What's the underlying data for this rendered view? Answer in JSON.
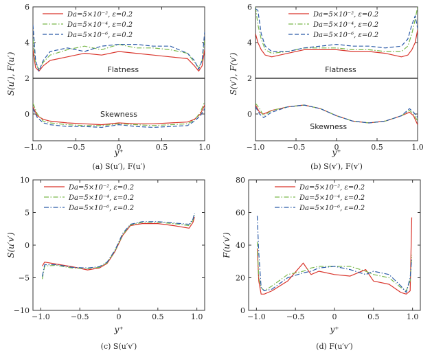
{
  "colors": {
    "red": "#d9342b",
    "green": "#79b84a",
    "blue": "#2b5ba8",
    "axis": "#333333"
  },
  "legend_labels": [
    "Da=5×10⁻², ε=0.2",
    "Da=5×10⁻⁴, ε=0.2",
    "Da=5×10⁻⁶, ε=0.2"
  ],
  "chart_data": [
    {
      "type": "line",
      "caption": "(a) S(u′), F(u′)",
      "xlabel": "y⁺",
      "ylabel": "S(u′), F(u′)",
      "xlim": [
        -1.0,
        1.0
      ],
      "ylim": [
        -1.5,
        6
      ],
      "xticks": [
        -1.0,
        -0.5,
        0,
        0.5,
        1.0
      ],
      "xtick_labels": [
        "−1.0",
        "−0.5",
        "0",
        "0.5",
        "1.0"
      ],
      "yticks": [
        0,
        2,
        4,
        6
      ],
      "ytick_labels": [
        "0",
        "2",
        "4",
        "6"
      ],
      "hline": 2,
      "annotations": [
        {
          "text": "Flatness",
          "x": 0.05,
          "y": 2.35
        },
        {
          "text": "Skewness",
          "x": 0.0,
          "y": -0.15
        }
      ],
      "legend_position": "top",
      "series": [
        {
          "name": "Da=5×10⁻², ε=0.2",
          "color": "red",
          "dash": "solid",
          "x": [
            -1.0,
            -0.97,
            -0.93,
            -0.88,
            -0.8,
            -0.6,
            -0.4,
            -0.2,
            0.0,
            0.2,
            0.4,
            0.6,
            0.8,
            0.88,
            0.93,
            0.97,
            1.0
          ],
          "y": [
            3.6,
            2.6,
            2.4,
            2.7,
            3.0,
            3.2,
            3.4,
            3.3,
            3.5,
            3.4,
            3.3,
            3.2,
            3.1,
            2.7,
            2.4,
            2.7,
            3.6
          ]
        },
        {
          "name": "Da=5×10⁻⁴, ε=0.2",
          "color": "green",
          "dash": "dashdot",
          "x": [
            -1.0,
            -0.97,
            -0.93,
            -0.88,
            -0.8,
            -0.6,
            -0.4,
            -0.2,
            0.0,
            0.2,
            0.4,
            0.6,
            0.8,
            0.88,
            0.93,
            0.97,
            1.0
          ],
          "y": [
            4.2,
            2.8,
            2.5,
            2.9,
            3.3,
            3.6,
            3.8,
            3.6,
            3.9,
            3.7,
            3.7,
            3.6,
            3.4,
            2.9,
            2.6,
            3.0,
            4.2
          ]
        },
        {
          "name": "Da=5×10⁻⁶, ε=0.2",
          "color": "blue",
          "dash": "dashed",
          "x": [
            -1.0,
            -0.97,
            -0.93,
            -0.88,
            -0.8,
            -0.6,
            -0.4,
            -0.2,
            0.0,
            0.2,
            0.4,
            0.6,
            0.8,
            0.88,
            0.93,
            0.97,
            1.0
          ],
          "y": [
            5.0,
            3.0,
            2.4,
            3.0,
            3.5,
            3.7,
            3.5,
            3.8,
            3.9,
            3.9,
            3.8,
            3.8,
            3.4,
            3.0,
            2.5,
            3.0,
            4.6
          ]
        },
        {
          "color": "red",
          "dash": "solid",
          "x": [
            -1.0,
            -0.95,
            -0.88,
            -0.8,
            -0.6,
            -0.4,
            -0.2,
            0.0,
            0.2,
            0.4,
            0.6,
            0.8,
            0.88,
            0.95,
            1.0
          ],
          "y": [
            0.4,
            -0.1,
            -0.3,
            -0.4,
            -0.5,
            -0.55,
            -0.6,
            -0.5,
            -0.55,
            -0.55,
            -0.5,
            -0.45,
            -0.3,
            0.0,
            0.5
          ]
        },
        {
          "color": "green",
          "dash": "dashdot",
          "x": [
            -1.0,
            -0.95,
            -0.88,
            -0.8,
            -0.6,
            -0.4,
            -0.2,
            0.0,
            0.2,
            0.4,
            0.6,
            0.8,
            0.88,
            0.95,
            1.0
          ],
          "y": [
            0.6,
            0.0,
            -0.4,
            -0.5,
            -0.6,
            -0.65,
            -0.65,
            -0.55,
            -0.6,
            -0.65,
            -0.6,
            -0.55,
            -0.35,
            0.1,
            0.7
          ]
        },
        {
          "color": "blue",
          "dash": "dashed",
          "x": [
            -1.0,
            -0.95,
            -0.88,
            -0.8,
            -0.6,
            -0.4,
            -0.2,
            0.0,
            0.2,
            0.4,
            0.6,
            0.8,
            0.88,
            0.95,
            1.0
          ],
          "y": [
            0.3,
            -0.2,
            -0.5,
            -0.6,
            -0.7,
            -0.7,
            -0.75,
            -0.6,
            -0.7,
            -0.75,
            -0.7,
            -0.65,
            -0.4,
            -0.1,
            0.3
          ]
        }
      ]
    },
    {
      "type": "line",
      "caption": "(b) S(v′), F(v′)",
      "xlabel": "y⁺",
      "ylabel": "S(v′), F(v′)",
      "xlim": [
        -1.0,
        1.0
      ],
      "ylim": [
        -1.5,
        6
      ],
      "xticks": [
        -1.0,
        -0.5,
        0,
        0.5,
        1.0
      ],
      "xtick_labels": [
        "−1.0",
        "−0.5",
        "0",
        "0.5",
        "1.0"
      ],
      "yticks": [
        0,
        2,
        4,
        6
      ],
      "ytick_labels": [
        "0",
        "2",
        "4",
        "6"
      ],
      "hline": 2,
      "annotations": [
        {
          "text": "Flatness",
          "x": 0.05,
          "y": 2.35
        },
        {
          "text": "Skewness",
          "x": -0.1,
          "y": -0.85
        }
      ],
      "legend_position": "top-right",
      "series": [
        {
          "name": "Da=5×10⁻², ε=0.2",
          "color": "red",
          "dash": "solid",
          "x": [
            -1.0,
            -0.97,
            -0.93,
            -0.88,
            -0.8,
            -0.6,
            -0.4,
            -0.2,
            0.0,
            0.2,
            0.4,
            0.6,
            0.8,
            0.88,
            0.93,
            0.97,
            1.0
          ],
          "y": [
            4.5,
            4.0,
            3.6,
            3.3,
            3.2,
            3.4,
            3.6,
            3.6,
            3.6,
            3.5,
            3.5,
            3.4,
            3.2,
            3.3,
            3.6,
            4.0,
            4.7
          ]
        },
        {
          "name": "Da=5×10⁻⁴, ε=0.2",
          "color": "green",
          "dash": "dashdot",
          "x": [
            -1.0,
            -0.97,
            -0.93,
            -0.88,
            -0.8,
            -0.6,
            -0.4,
            -0.2,
            0.0,
            0.2,
            0.4,
            0.6,
            0.8,
            0.88,
            0.93,
            0.97,
            1.0
          ],
          "y": [
            6.0,
            5.0,
            4.2,
            3.6,
            3.4,
            3.5,
            3.7,
            3.7,
            3.7,
            3.6,
            3.6,
            3.5,
            3.5,
            3.8,
            4.5,
            5.3,
            6.0
          ]
        },
        {
          "name": "Da=5×10⁻⁶, ε=0.2",
          "color": "blue",
          "dash": "dashed",
          "x": [
            -1.0,
            -0.97,
            -0.93,
            -0.88,
            -0.8,
            -0.6,
            -0.4,
            -0.2,
            0.0,
            0.2,
            0.4,
            0.6,
            0.8,
            0.88,
            0.93,
            0.97,
            1.0
          ],
          "y": [
            5.9,
            5.8,
            4.5,
            3.8,
            3.5,
            3.5,
            3.7,
            3.8,
            3.9,
            3.8,
            3.8,
            3.7,
            3.8,
            4.2,
            5.0,
            5.5,
            4.8
          ]
        },
        {
          "color": "red",
          "dash": "solid",
          "x": [
            -1.0,
            -0.95,
            -0.9,
            -0.8,
            -0.6,
            -0.4,
            -0.2,
            0.0,
            0.2,
            0.4,
            0.6,
            0.8,
            0.9,
            0.95,
            1.0
          ],
          "y": [
            0.5,
            0.1,
            0.0,
            0.2,
            0.4,
            0.5,
            0.3,
            -0.1,
            -0.4,
            -0.5,
            -0.4,
            -0.1,
            0.1,
            -0.1,
            -0.6
          ]
        },
        {
          "color": "green",
          "dash": "dashdot",
          "x": [
            -1.0,
            -0.95,
            -0.9,
            -0.8,
            -0.6,
            -0.4,
            -0.2,
            0.0,
            0.2,
            0.4,
            0.6,
            0.8,
            0.9,
            0.95,
            1.0
          ],
          "y": [
            0.6,
            0.3,
            -0.1,
            0.2,
            0.4,
            0.5,
            0.3,
            -0.1,
            -0.4,
            -0.5,
            -0.4,
            -0.1,
            0.2,
            0.0,
            -0.4
          ]
        },
        {
          "color": "blue",
          "dash": "dashed",
          "x": [
            -1.0,
            -0.95,
            -0.9,
            -0.8,
            -0.6,
            -0.4,
            -0.2,
            0.0,
            0.2,
            0.4,
            0.6,
            0.8,
            0.9,
            0.95,
            1.0
          ],
          "y": [
            0.4,
            0.0,
            -0.2,
            0.1,
            0.4,
            0.5,
            0.3,
            -0.1,
            -0.4,
            -0.5,
            -0.4,
            -0.1,
            0.3,
            0.1,
            -0.2
          ]
        }
      ]
    },
    {
      "type": "line",
      "caption": "(c) S(u′v′)",
      "xlabel": "y⁺",
      "ylabel": "S(u′v′)",
      "xlim": [
        -1.1,
        1.1
      ],
      "ylim": [
        -10,
        10
      ],
      "xticks": [
        -1.0,
        -0.5,
        0,
        0.5,
        1.0
      ],
      "xtick_labels": [
        "−1.0",
        "−0.5",
        "0",
        "0.5",
        "1.0"
      ],
      "yticks": [
        -10,
        -5,
        0,
        5,
        10
      ],
      "ytick_labels": [
        "−10",
        "−5",
        "0",
        "5",
        "10"
      ],
      "annotations": [],
      "legend_position": "top-left",
      "series": [
        {
          "name": "Da=5×10⁻², ε=0.2",
          "color": "red",
          "dash": "solid",
          "x": [
            -0.98,
            -0.95,
            -0.8,
            -0.6,
            -0.4,
            -0.25,
            -0.15,
            -0.05,
            0.05,
            0.15,
            0.3,
            0.5,
            0.7,
            0.9,
            0.95,
            0.97
          ],
          "y": [
            -3.2,
            -2.6,
            -2.9,
            -3.3,
            -3.8,
            -3.5,
            -2.8,
            -1.0,
            1.5,
            3.0,
            3.3,
            3.3,
            3.0,
            2.6,
            3.5,
            4.3
          ]
        },
        {
          "name": "Da=5×10⁻⁴, ε=0.2",
          "color": "green",
          "dash": "dashdot",
          "x": [
            -0.98,
            -0.95,
            -0.8,
            -0.6,
            -0.4,
            -0.25,
            -0.15,
            -0.05,
            0.05,
            0.15,
            0.3,
            0.5,
            0.7,
            0.9,
            0.95,
            0.97
          ],
          "y": [
            -5.2,
            -3.2,
            -3.1,
            -3.5,
            -3.6,
            -3.4,
            -2.7,
            -0.9,
            1.6,
            3.1,
            3.5,
            3.5,
            3.3,
            3.0,
            3.8,
            4.7
          ]
        },
        {
          "name": "Da=5×10⁻⁶, ε=0.2",
          "color": "blue",
          "dash": "dashdot",
          "x": [
            -0.98,
            -0.95,
            -0.8,
            -0.6,
            -0.4,
            -0.25,
            -0.15,
            -0.05,
            0.05,
            0.15,
            0.3,
            0.5,
            0.7,
            0.9,
            0.95,
            0.97
          ],
          "y": [
            -4.8,
            -3.0,
            -3.0,
            -3.4,
            -3.5,
            -3.3,
            -2.6,
            -0.8,
            1.8,
            3.2,
            3.6,
            3.6,
            3.4,
            3.2,
            4.0,
            4.9
          ]
        }
      ]
    },
    {
      "type": "line",
      "caption": "(d) F(u′v′)",
      "xlabel": "y⁺",
      "ylabel": "F(u′v′)",
      "xlim": [
        -1.1,
        1.1
      ],
      "ylim": [
        0,
        80
      ],
      "xticks": [
        -1.0,
        -0.5,
        0,
        0.5,
        1.0
      ],
      "xtick_labels": [
        "−1.0",
        "−0.5",
        "0",
        "0.5",
        "1.0"
      ],
      "yticks": [
        0,
        20,
        40,
        60,
        80
      ],
      "ytick_labels": [
        "0",
        "20",
        "40",
        "60",
        "80"
      ],
      "annotations": [],
      "legend_position": "top",
      "series": [
        {
          "name": "Da=5×10⁻², ε=0.2",
          "color": "red",
          "dash": "solid",
          "x": [
            -0.99,
            -0.97,
            -0.94,
            -0.9,
            -0.8,
            -0.6,
            -0.4,
            -0.3,
            -0.2,
            0.0,
            0.2,
            0.4,
            0.5,
            0.7,
            0.85,
            0.92,
            0.97,
            0.99
          ],
          "y": [
            38,
            18,
            10,
            10,
            12,
            18,
            29,
            22,
            24,
            22,
            21,
            25,
            18,
            16,
            11,
            10,
            12,
            57
          ]
        },
        {
          "name": "Da=5×10⁻⁴, ε=0.2",
          "color": "green",
          "dash": "dashdot",
          "x": [
            -0.99,
            -0.97,
            -0.94,
            -0.9,
            -0.8,
            -0.6,
            -0.4,
            -0.3,
            -0.2,
            0.0,
            0.2,
            0.4,
            0.5,
            0.7,
            0.85,
            0.92,
            0.97,
            0.99
          ],
          "y": [
            42,
            20,
            14,
            12,
            15,
            22,
            24,
            26,
            27,
            27,
            27,
            24,
            22,
            20,
            14,
            12,
            18,
            34
          ]
        },
        {
          "name": "Da=5×10⁻⁶, ε=0.2",
          "color": "blue",
          "dash": "dashdot",
          "x": [
            -0.99,
            -0.97,
            -0.94,
            -0.9,
            -0.8,
            -0.6,
            -0.4,
            -0.3,
            -0.2,
            0.0,
            0.2,
            0.4,
            0.5,
            0.7,
            0.85,
            0.92,
            0.97,
            0.99
          ],
          "y": [
            58,
            35,
            14,
            12,
            13,
            20,
            23,
            24,
            26,
            27,
            25,
            22,
            24,
            22,
            15,
            11,
            20,
            32
          ]
        }
      ]
    }
  ]
}
